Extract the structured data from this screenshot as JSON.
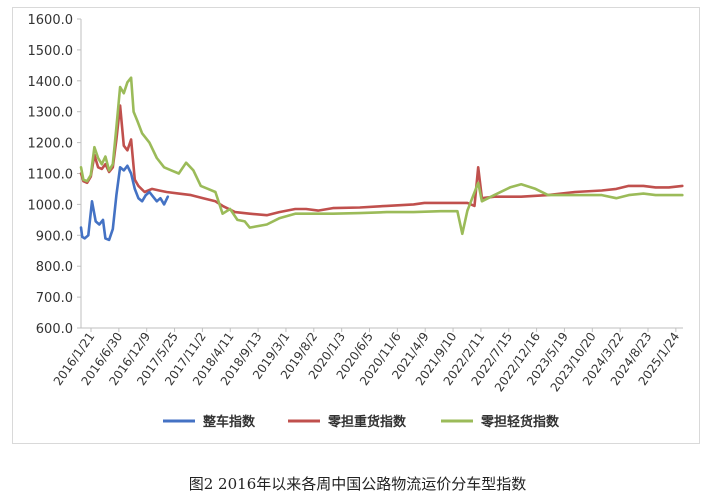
{
  "caption": "图2 2016年以来各周中国公路物流运价分车型指数",
  "chart_data": {
    "type": "line",
    "title": "",
    "xlabel": "",
    "ylabel": "",
    "ylim": [
      600,
      1600
    ],
    "y_ticks": [
      "600.0",
      "700.0",
      "800.0",
      "900.0",
      "1000.0",
      "1100.0",
      "1200.0",
      "1300.0",
      "1400.0",
      "1500.0",
      "1600.0"
    ],
    "x_tick_labels": [
      "2016/1/21",
      "2016/6/30",
      "2016/12/9",
      "2017/5/25",
      "2017/11/2",
      "2018/4/11",
      "2018/9/13",
      "2019/3/1",
      "2019/8/2",
      "2020/1/3",
      "2020/6/5",
      "2020/11/6",
      "2021/4/9",
      "2021/9/10",
      "2022/2/11",
      "2022/7/15",
      "2022/12/16",
      "2023/5/19",
      "2023/10/20",
      "2024/3/22",
      "2024/8/23",
      "2025/1/24"
    ],
    "x_range": [
      "2016-01-21",
      "2025-06-30"
    ],
    "grid": false,
    "legend_position": "bottom",
    "series": [
      {
        "name": "整车指数",
        "color": "#4472c4",
        "points": [
          [
            "2016-01-21",
            925
          ],
          [
            "2016-01-28",
            895
          ],
          [
            "2016-02-11",
            890
          ],
          [
            "2016-03-03",
            900
          ],
          [
            "2016-03-24",
            1010
          ],
          [
            "2016-04-14",
            945
          ],
          [
            "2016-05-05",
            935
          ],
          [
            "2016-05-26",
            950
          ],
          [
            "2016-06-09",
            890
          ],
          [
            "2016-06-30",
            885
          ],
          [
            "2016-07-21",
            920
          ],
          [
            "2016-08-11",
            1030
          ],
          [
            "2016-09-01",
            1120
          ],
          [
            "2016-09-22",
            1110
          ],
          [
            "2016-10-13",
            1125
          ],
          [
            "2016-11-03",
            1100
          ],
          [
            "2016-11-24",
            1050
          ],
          [
            "2016-12-15",
            1020
          ],
          [
            "2017-01-05",
            1010
          ],
          [
            "2017-01-26",
            1030
          ],
          [
            "2017-02-16",
            1040
          ],
          [
            "2017-03-09",
            1025
          ],
          [
            "2017-03-30",
            1010
          ],
          [
            "2017-04-20",
            1020
          ],
          [
            "2017-05-11",
            1000
          ],
          [
            "2017-06-01",
            1025
          ]
        ]
      },
      {
        "name": "零担重货指数",
        "color": "#c0504d",
        "points": [
          [
            "2016-01-21",
            1100
          ],
          [
            "2016-02-04",
            1075
          ],
          [
            "2016-02-25",
            1070
          ],
          [
            "2016-03-17",
            1090
          ],
          [
            "2016-04-07",
            1160
          ],
          [
            "2016-04-28",
            1120
          ],
          [
            "2016-05-19",
            1115
          ],
          [
            "2016-06-09",
            1130
          ],
          [
            "2016-06-30",
            1105
          ],
          [
            "2016-07-21",
            1120
          ],
          [
            "2016-08-11",
            1210
          ],
          [
            "2016-09-01",
            1320
          ],
          [
            "2016-09-22",
            1190
          ],
          [
            "2016-10-13",
            1175
          ],
          [
            "2016-11-03",
            1210
          ],
          [
            "2016-11-24",
            1080
          ],
          [
            "2016-12-15",
            1060
          ],
          [
            "2017-01-19",
            1040
          ],
          [
            "2017-03-02",
            1050
          ],
          [
            "2017-04-13",
            1045
          ],
          [
            "2017-05-25",
            1040
          ],
          [
            "2017-08-03",
            1035
          ],
          [
            "2017-10-12",
            1030
          ],
          [
            "2017-12-21",
            1020
          ],
          [
            "2018-03-01",
            1010
          ],
          [
            "2018-04-11",
            995
          ],
          [
            "2018-06-21",
            975
          ],
          [
            "2018-09-13",
            970
          ],
          [
            "2018-12-20",
            965
          ],
          [
            "2019-03-01",
            975
          ],
          [
            "2019-06-01",
            985
          ],
          [
            "2019-08-02",
            985
          ],
          [
            "2019-10-10",
            980
          ],
          [
            "2020-01-03",
            988
          ],
          [
            "2020-06-05",
            990
          ],
          [
            "2020-11-06",
            995
          ],
          [
            "2021-04-09",
            1000
          ],
          [
            "2021-06-10",
            1005
          ],
          [
            "2021-09-10",
            1005
          ],
          [
            "2022-02-11",
            1005
          ],
          [
            "2022-03-24",
            995
          ],
          [
            "2022-04-14",
            1120
          ],
          [
            "2022-05-05",
            1020
          ],
          [
            "2022-07-15",
            1025
          ],
          [
            "2022-12-16",
            1025
          ],
          [
            "2023-05-19",
            1030
          ],
          [
            "2023-10-20",
            1040
          ],
          [
            "2024-03-22",
            1045
          ],
          [
            "2024-06-13",
            1050
          ],
          [
            "2024-08-23",
            1060
          ],
          [
            "2024-11-15",
            1060
          ],
          [
            "2025-01-24",
            1055
          ],
          [
            "2025-04-10",
            1055
          ],
          [
            "2025-06-26",
            1060
          ]
        ]
      },
      {
        "name": "零担轻货指数",
        "color": "#9bbb59",
        "points": [
          [
            "2016-01-21",
            1120
          ],
          [
            "2016-02-04",
            1080
          ],
          [
            "2016-02-25",
            1075
          ],
          [
            "2016-03-17",
            1095
          ],
          [
            "2016-04-07",
            1185
          ],
          [
            "2016-04-28",
            1150
          ],
          [
            "2016-05-19",
            1130
          ],
          [
            "2016-06-09",
            1155
          ],
          [
            "2016-06-30",
            1110
          ],
          [
            "2016-07-21",
            1130
          ],
          [
            "2016-08-11",
            1250
          ],
          [
            "2016-09-01",
            1380
          ],
          [
            "2016-09-22",
            1360
          ],
          [
            "2016-10-13",
            1395
          ],
          [
            "2016-11-03",
            1410
          ],
          [
            "2016-11-17",
            1300
          ],
          [
            "2016-12-09",
            1270
          ],
          [
            "2017-01-05",
            1230
          ],
          [
            "2017-02-16",
            1200
          ],
          [
            "2017-03-30",
            1150
          ],
          [
            "2017-05-11",
            1120
          ],
          [
            "2017-06-22",
            1110
          ],
          [
            "2017-08-03",
            1100
          ],
          [
            "2017-09-14",
            1135
          ],
          [
            "2017-10-26",
            1110
          ],
          [
            "2017-12-07",
            1060
          ],
          [
            "2018-01-18",
            1050
          ],
          [
            "2018-03-01",
            1040
          ],
          [
            "2018-04-11",
            970
          ],
          [
            "2018-05-24",
            985
          ],
          [
            "2018-07-05",
            950
          ],
          [
            "2018-08-16",
            945
          ],
          [
            "2018-09-13",
            925
          ],
          [
            "2018-12-20",
            935
          ],
          [
            "2019-03-01",
            955
          ],
          [
            "2019-06-01",
            970
          ],
          [
            "2019-08-02",
            970
          ],
          [
            "2019-10-10",
            970
          ],
          [
            "2020-01-03",
            970
          ],
          [
            "2020-06-05",
            972
          ],
          [
            "2020-11-06",
            975
          ],
          [
            "2021-04-09",
            975
          ],
          [
            "2021-09-10",
            978
          ],
          [
            "2021-12-16",
            978
          ],
          [
            "2022-01-13",
            905
          ],
          [
            "2022-02-11",
            980
          ],
          [
            "2022-04-14",
            1070
          ],
          [
            "2022-05-05",
            1010
          ],
          [
            "2022-07-15",
            1030
          ],
          [
            "2022-10-13",
            1055
          ],
          [
            "2022-12-16",
            1065
          ],
          [
            "2023-03-09",
            1050
          ],
          [
            "2023-05-19",
            1030
          ],
          [
            "2023-10-20",
            1030
          ],
          [
            "2024-03-22",
            1030
          ],
          [
            "2024-06-13",
            1020
          ],
          [
            "2024-08-23",
            1030
          ],
          [
            "2024-11-15",
            1035
          ],
          [
            "2025-01-24",
            1030
          ],
          [
            "2025-06-26",
            1030
          ]
        ]
      }
    ]
  }
}
